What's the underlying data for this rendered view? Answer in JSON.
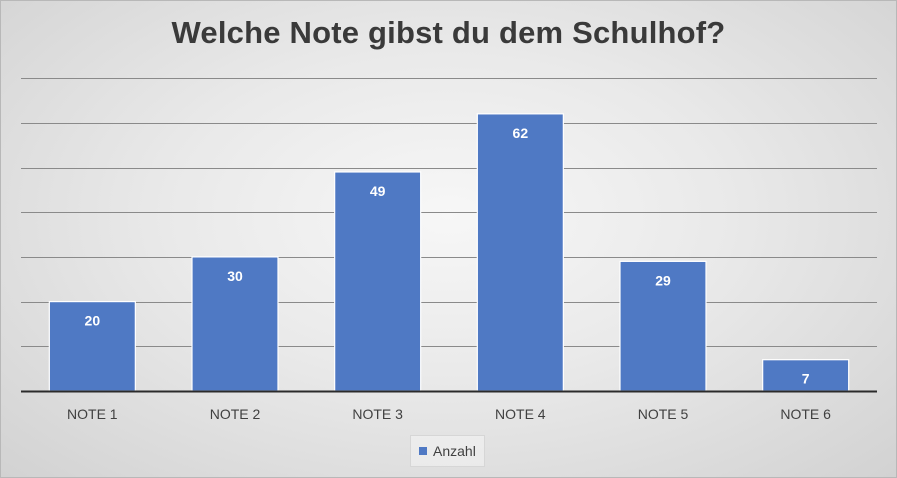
{
  "chart_data": {
    "type": "bar",
    "title": "Welche Note gibst du dem Schulhof?",
    "categories": [
      "NOTE 1",
      "NOTE 2",
      "NOTE 3",
      "NOTE 4",
      "NOTE 5",
      "NOTE 6"
    ],
    "series": [
      {
        "name": "Anzahl",
        "values": [
          20,
          30,
          49,
          62,
          29,
          7
        ],
        "color": "#4f79c4"
      }
    ],
    "ylim": [
      0,
      70
    ],
    "y_gridlines": [
      10,
      20,
      30,
      40,
      50,
      60,
      70
    ],
    "data_labels": true,
    "legend": "bottom",
    "grid": true,
    "xlabel": "",
    "ylabel": ""
  },
  "colors": {
    "bar_fill": "#4f79c4",
    "bar_border": "#ffffff",
    "grid": "#8a8a8a",
    "axis": "#2b2b2b",
    "title": "#3a3a3a"
  }
}
